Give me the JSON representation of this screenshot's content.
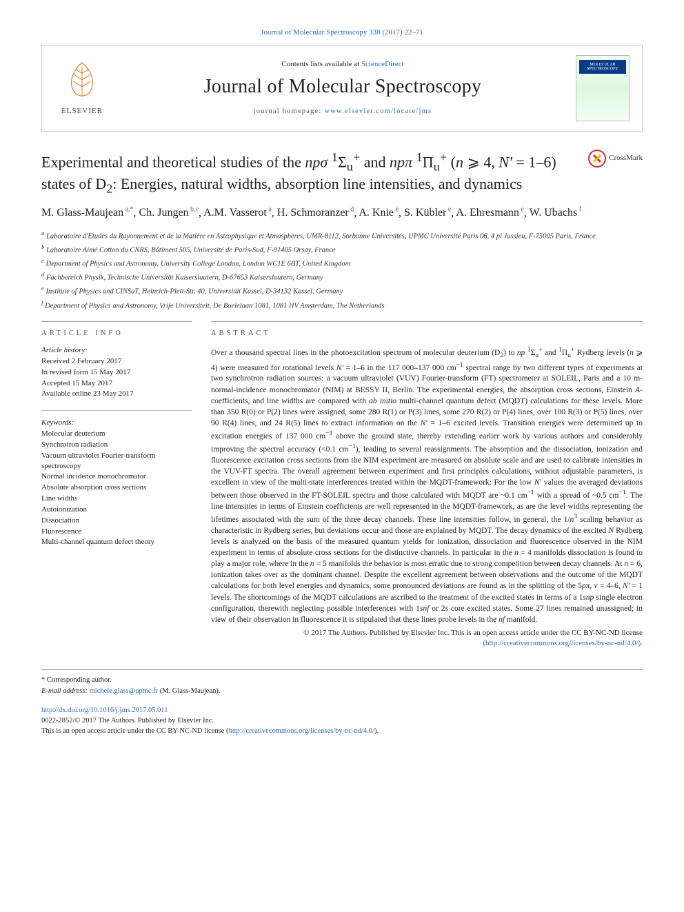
{
  "top_link": {
    "label": "Journal of Molecular Spectroscopy 338 (2017) 22–71"
  },
  "masthead": {
    "elsevier_label": "ELSEVIER",
    "contents_prefix": "Contents lists available at ",
    "contents_link": "ScienceDirect",
    "journal_title": "Journal of Molecular Spectroscopy",
    "homepage_prefix": "journal homepage: ",
    "homepage_url": "www.elsevier.com/locate/jms",
    "cover_label": "MOLECULAR SPECTROSCOPY"
  },
  "paper": {
    "title_html": "Experimental and theoretical studies of the <i>npσ</i> <sup>1</sup>Σ<sub>u</sub><sup>+</sup> and <i>npπ</i> <sup>1</sup>Π<sub>u</sub><sup>+</sup> (<i>n</i> ⩾ 4, <i>N′</i> = 1–6) states of D<sub>2</sub>: Energies, natural widths, absorption line intensities, and dynamics",
    "crossmark_label": "CrossMark"
  },
  "authors": [
    {
      "name": "M. Glass-Maujean",
      "aff": "a,*"
    },
    {
      "name": "Ch. Jungen",
      "aff": "b,c"
    },
    {
      "name": "A.M. Vasserot",
      "aff": "a"
    },
    {
      "name": "H. Schmoranzer",
      "aff": "d"
    },
    {
      "name": "A. Knie",
      "aff": "e"
    },
    {
      "name": "S. Kübler",
      "aff": "e"
    },
    {
      "name": "A. Ehresmann",
      "aff": "e"
    },
    {
      "name": "W. Ubachs",
      "aff": "f"
    }
  ],
  "affiliations": [
    {
      "key": "a",
      "text": "Laboratoire d'Etudes du Rayonnement et de la Matière en Astrophysique et Atmosphères, UMR-8112, Sorbonne Universités, UPMC Université Paris 06, 4 pl Jussieu, F-75005 Paris, France"
    },
    {
      "key": "b",
      "text": "Laboratoire Aimé Cotton du CNRS, Bâtiment 505, Université de Paris-Sud, F-91405 Orsay, France"
    },
    {
      "key": "c",
      "text": "Department of Physics and Astronomy, University College London, London WC1E 6BT, United Kingdom"
    },
    {
      "key": "d",
      "text": "Fachbereich Physik, Technische Universität Kaiserslautern, D-67653 Kaiserslautern, Germany"
    },
    {
      "key": "e",
      "text": "Institute of Physics and CINSaT, Heinrich-Plett-Str. 40, Universität Kassel, D-34132 Kassel, Germany"
    },
    {
      "key": "f",
      "text": "Department of Physics and Astronomy, Vrije Universiteit, De Boelelaan 1081, 1081 HV Amsterdam, The Netherlands"
    }
  ],
  "article_info": {
    "heading": "article info",
    "history_label": "Article history:",
    "history": [
      "Received 2 February 2017",
      "In revised form 15 May 2017",
      "Accepted 15 May 2017",
      "Available online 23 May 2017"
    ],
    "keywords_label": "Keywords:",
    "keywords": [
      "Molecular deuterium",
      "Synchrotron radiation",
      "Vacuum ultraviolet Fourier-transform spectroscopy",
      "Normal incidence monochromator",
      "Absolute absorption cross sections",
      "Line widths",
      "Autoionization",
      "Dissociation",
      "Fluorescence",
      "Multi-channel quantum defect theory"
    ]
  },
  "abstract": {
    "heading": "abstract",
    "body_html": "Over a thousand spectral lines in the photoexcitation spectrum of molecular deuterium (D<sub>2</sub>) to <i>np</i> <sup>1</sup>Σ<sub>u</sub><sup>+</sup> and <sup>1</sup>Π<sub>u</sub><sup>+</sup> Rydberg levels (<i>n</i> ⩾ 4) were measured for rotational levels <i>N′</i> = 1–6 in the 117 000–137 000 cm<sup>−1</sup> spectral range by two different types of experiments at two synchrotron radiation sources: a vacuum ultraviolet (VUV) Fourier-transform (FT) spectrometer at SOLEIL, Paris and a 10 m-normal-incidence monochromator (NIM) at BESSY II, Berlin. The experimental energies, the absorption cross sections, Einstein <i>A</i>-coefficients, and line widths are compared with <i>ab initio</i> multi-channel quantum defect (MQDT) calculations for these levels. More than 350 R(0) or P(2) lines were assigned, some 280 R(1) or P(3) lines, some 270 R(2) or P(4) lines, over 100 R(3) or P(5) lines, over 90 R(4) lines, and 24 R(5) lines to extract information on the <i>N′</i> = 1–6 excited levels. Transition energies were determined up to excitation energies of 137 000 cm<sup>−1</sup> above the ground state, thereby extending earlier work by various authors and considerably improving the spectral accuracy (&lt;0.1 cm<sup>−1</sup>), leading to several reassignments. The absorption and the dissociation, ionization and fluorescence excitation cross sections from the NIM experiment are measured on absolute scale and are used to calibrate intensities in the VUV-FT spectra. The overall agreement between experiment and first principles calculations, without adjustable parameters, is excellent in view of the multi-state interferences treated within the MQDT-framework: For the low <i>N′</i> values the averaged deviations between those observed in the FT-SOLEIL spectra and those calculated with MQDT are ~0.1 cm<sup>−1</sup> with a spread of ~0.5 cm<sup>−1</sup>. The line intensities in terms of Einstein coefficients are well represented in the MQDT-framework, as are the level widths representing the lifetimes associated with the sum of the three decay channels. These line intensities follow, in general, the 1/<i>n</i><sup>3</sup> scaling behavior as characteristic in Rydberg series, but deviations occur and those are explained by MQDT. The decay dynamics of the excited <i>N</i> Rydberg levels is analyzed on the basis of the measured quantum yields for ionization, dissociation and fluorescence observed in the NIM experiment in terms of absolute cross sections for the distinctive channels. In particular in the <i>n</i> = 4 manifolds dissociation is found to play a major role, where in the <i>n</i> = 5 manifolds the behavior is most erratic due to strong competition between decay channels. At <i>n</i> = 6, ionization takes over as the dominant channel. Despite the excellent agreement between observations and the outcome of the MQDT calculations for both level energies and dynamics, some pronounced deviations are found as in the splitting of the 5<i>pπ</i>, <i>v</i> = 4–6, <i>N′</i> = 1 levels. The shortcomings of the MQDT calculations are ascribed to the treatment of the excited states in terms of a 1<i>snp</i> single electron configuration, therewith neglecting possible interferences with 1<i>snf</i> or 2<i>s</i> core excited states. Some 27 lines remained unassigned; in view of their observation in fluorescence it is stipulated that these lines probe levels in the <i>nf</i> manifold.",
    "copyright": "© 2017 The Authors. Published by Elsevier Inc. This is an open access article under the CC BY-NC-ND license",
    "license_link_label": "(http://creativecommons.org/licenses/by-nc-nd/4.0/)."
  },
  "footnotes": {
    "corr_label": "* Corresponding author.",
    "email_label": "E-mail address:",
    "email": "michele.glass@upmc.fr",
    "email_attrib": "(M. Glass-Maujean)."
  },
  "footer": {
    "doi": "http://dx.doi.org/10.1016/j.jms.2017.05.011",
    "issn_line": "0022-2852/© 2017 The Authors. Published by Elsevier Inc.",
    "license_line_prefix": "This is an open access article under the CC BY-NC-ND license (",
    "license_url": "http://creativecommons.org/licenses/by-nc-nd/4.0/",
    "license_line_suffix": ")."
  },
  "style": {
    "link_color": "#2b6ab3",
    "rule_color": "#999999"
  }
}
